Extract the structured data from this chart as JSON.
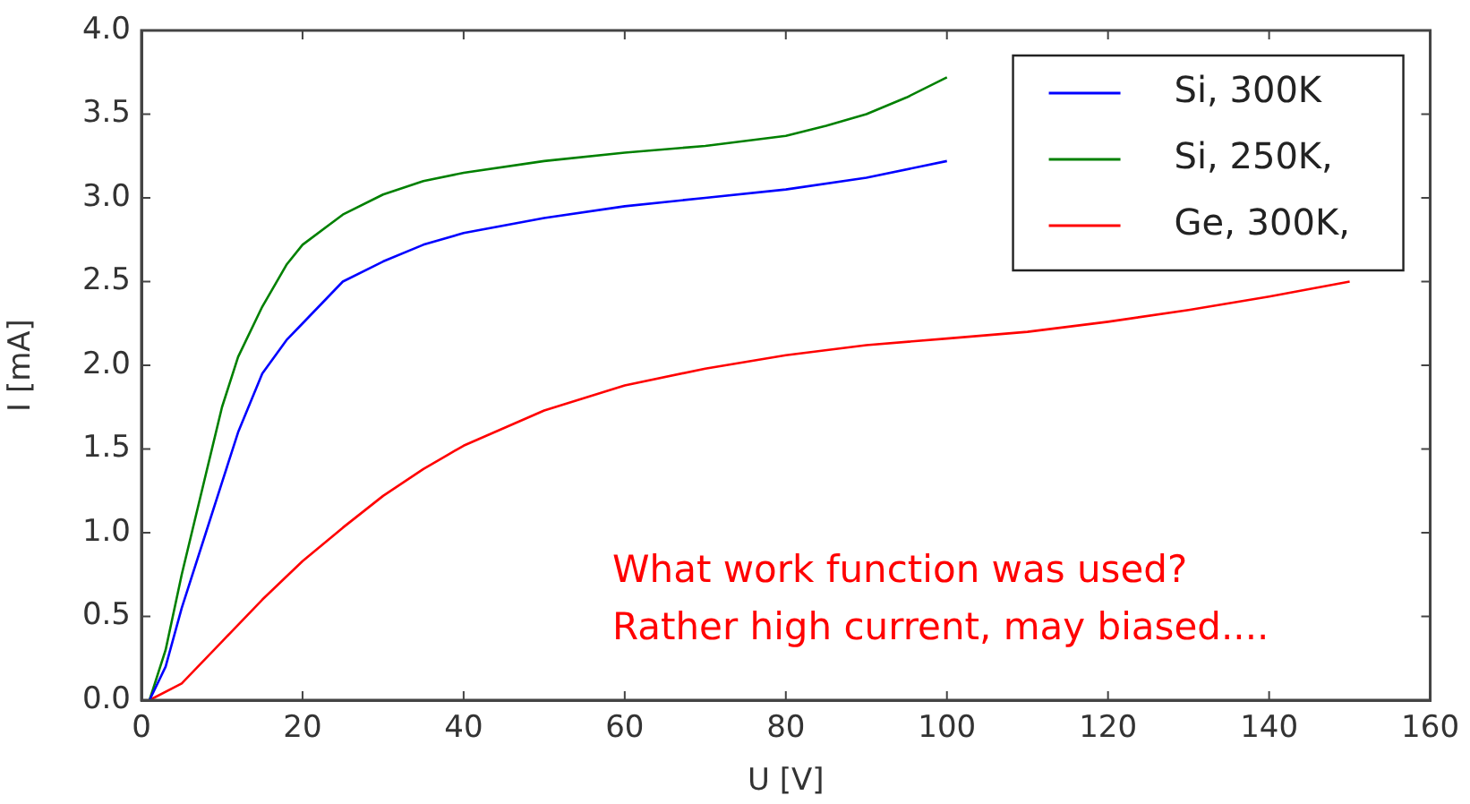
{
  "chart_data": {
    "type": "line",
    "xlabel": "U [V]",
    "ylabel": "I [mA]",
    "xlim": [
      0,
      160
    ],
    "xticks": [
      0,
      20,
      40,
      60,
      80,
      100,
      120,
      140,
      160
    ],
    "ylim": [
      0,
      4.0
    ],
    "yticks": [
      {
        "value": 0,
        "label": "0.0"
      },
      {
        "value": 0.5,
        "label": "0.5"
      },
      {
        "value": 1,
        "label": "1.0"
      },
      {
        "value": 1.5,
        "label": "1.5"
      },
      {
        "value": 2,
        "label": "2.0"
      },
      {
        "value": 2.5,
        "label": "2.5"
      },
      {
        "value": 3,
        "label": "3.0"
      },
      {
        "value": 3.5,
        "label": "3.5"
      },
      {
        "value": 4,
        "label": "4.0"
      }
    ],
    "grid": false,
    "legend": "top right",
    "marker": "none",
    "line_style": "solid",
    "annotations": [
      "What work function was used?",
      "Rather high current, may biased...."
    ],
    "series": [
      {
        "name": "Si, 300K",
        "color": "#0000ff",
        "x": [
          1,
          3,
          5,
          8,
          10,
          12,
          15,
          18,
          20,
          25,
          30,
          35,
          40,
          50,
          60,
          70,
          80,
          90,
          100
        ],
        "values": [
          0,
          0.2,
          0.55,
          1.0,
          1.3,
          1.6,
          1.95,
          2.15,
          2.25,
          2.5,
          2.62,
          2.72,
          2.79,
          2.88,
          2.95,
          3.0,
          3.05,
          3.12,
          3.22
        ]
      },
      {
        "name": "Si, 250K,",
        "color": "#008000",
        "x": [
          1,
          3,
          5,
          8,
          10,
          12,
          15,
          18,
          20,
          25,
          30,
          35,
          40,
          50,
          60,
          70,
          80,
          85,
          90,
          95,
          100
        ],
        "values": [
          0,
          0.3,
          0.75,
          1.35,
          1.75,
          2.05,
          2.35,
          2.6,
          2.72,
          2.9,
          3.02,
          3.1,
          3.15,
          3.22,
          3.27,
          3.31,
          3.37,
          3.43,
          3.5,
          3.6,
          3.72
        ]
      },
      {
        "name": "Ge, 300K,",
        "color": "#ff0000",
        "x": [
          1,
          5,
          10,
          15,
          20,
          25,
          30,
          35,
          40,
          50,
          60,
          70,
          80,
          90,
          100,
          110,
          120,
          130,
          140,
          150
        ],
        "values": [
          0,
          0.1,
          0.35,
          0.6,
          0.83,
          1.03,
          1.22,
          1.38,
          1.52,
          1.73,
          1.88,
          1.98,
          2.06,
          2.12,
          2.16,
          2.2,
          2.26,
          2.33,
          2.41,
          2.5
        ]
      }
    ]
  }
}
